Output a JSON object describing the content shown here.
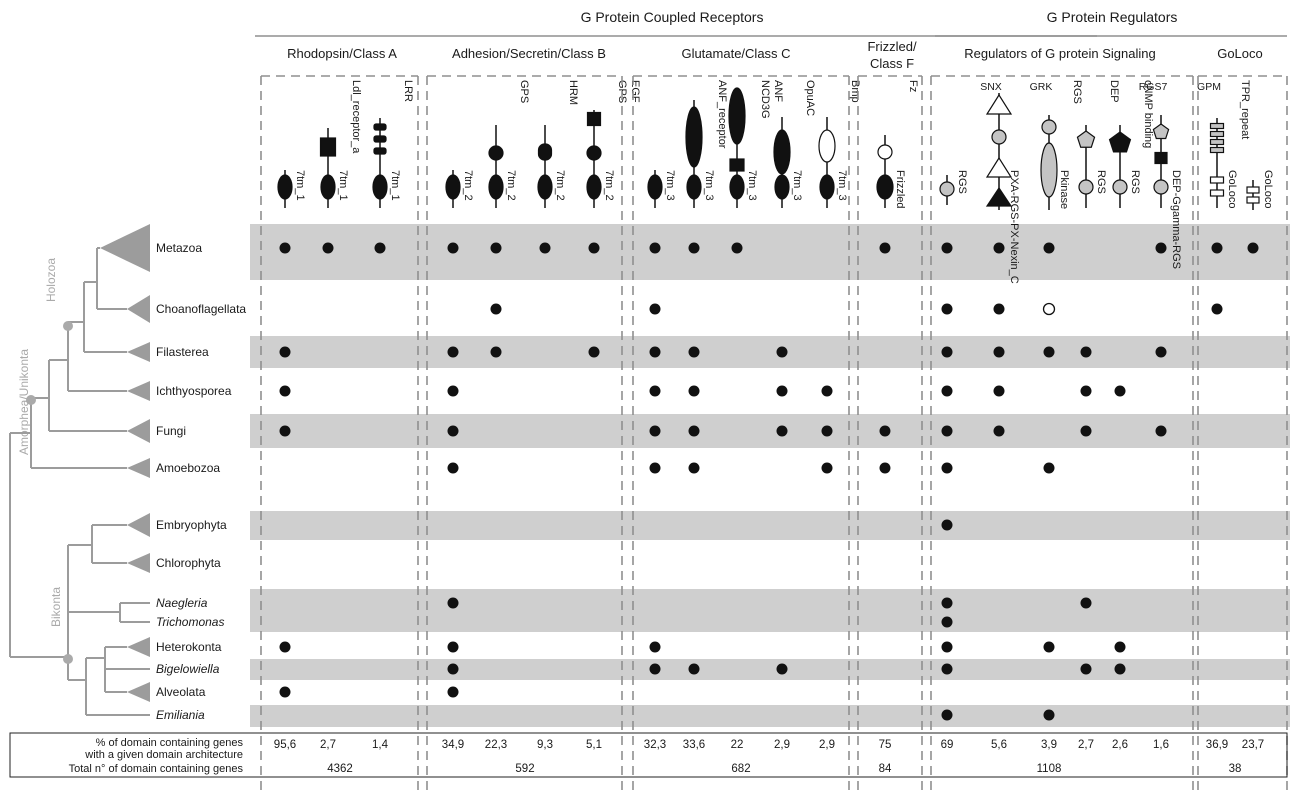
{
  "supergroups": [
    {
      "label": "G Protein Coupled Receptors"
    },
    {
      "label": "G Protein Regulators"
    }
  ],
  "classes": [
    {
      "label": "Rhodopsin/Class A"
    },
    {
      "label": "Adhesion/Secretin/Class B"
    },
    {
      "label": "Glutamate/Class C"
    },
    {
      "label": "Frizzled/",
      "label2": "Class F"
    },
    {
      "label": "Regulators of G protein Signaling"
    },
    {
      "label": "GoLoco"
    }
  ],
  "columns": [
    {
      "name": "col-7tm1-a",
      "labels": [
        "7tm_1"
      ],
      "pct": "95,6",
      "shape": "7tm"
    },
    {
      "name": "col-ldl",
      "labels": [
        "Ldl_receptor_a",
        "7tm_1"
      ],
      "pct": "2,7",
      "shape": "ldl"
    },
    {
      "name": "col-lrr",
      "labels": [
        "LRR",
        "7tm_1"
      ],
      "pct": "1,4",
      "shape": "lrr"
    },
    {
      "name": "col-7tm2-a",
      "labels": [
        "7tm_2"
      ],
      "pct": "34,9",
      "shape": "7tm"
    },
    {
      "name": "col-gps",
      "labels": [
        "GPS",
        "7tm_2"
      ],
      "pct": "22,3",
      "shape": "gps"
    },
    {
      "name": "col-hrm",
      "labels": [
        "HRM",
        "7tm_2"
      ],
      "pct": "9,3",
      "shape": "hrm"
    },
    {
      "name": "col-egf",
      "labels": [
        "EGF",
        "GPS",
        "7tm_2"
      ],
      "pct": "5,1",
      "shape": "egf"
    },
    {
      "name": "col-7tm3-a",
      "labels": [
        "7tm_3"
      ],
      "pct": "32,3",
      "shape": "7tm"
    },
    {
      "name": "col-anf",
      "labels": [
        "ANF_receptor",
        "7tm_3"
      ],
      "pct": "33,6",
      "shape": "anf"
    },
    {
      "name": "col-ncd3g",
      "labels": [
        "ANF",
        "NCD3G",
        "7tm_3"
      ],
      "pct": "22",
      "shape": "ncd3g"
    },
    {
      "name": "col-opuac",
      "labels": [
        "OpuAC",
        "7tm_3"
      ],
      "pct": "2,9",
      "shape": "opuac"
    },
    {
      "name": "col-bmp",
      "labels": [
        "Bmp",
        "7tm_3"
      ],
      "pct": "2,9",
      "shape": "bmp"
    },
    {
      "name": "col-frizzled",
      "labels": [
        "Fz",
        "Frizzled"
      ],
      "pct": "75",
      "shape": "fz"
    },
    {
      "name": "col-rgs-a",
      "labels": [
        "RGS"
      ],
      "pct": "69",
      "shape": "rgs"
    },
    {
      "name": "col-snx",
      "labels": [
        "PXA-RGS-PX-Nexin_C"
      ],
      "toplabel": "SNX",
      "pct": "5,6",
      "shape": "snx"
    },
    {
      "name": "col-grk",
      "labels": [
        "RGS",
        "Pkinase"
      ],
      "toplabel": "GRK",
      "pct": "3,9",
      "shape": "grk"
    },
    {
      "name": "col-dep",
      "labels": [
        "DEP",
        "RGS"
      ],
      "pct": "2,7",
      "shape": "dep"
    },
    {
      "name": "col-cnmp",
      "labels": [
        "cNMP binding",
        "RGS"
      ],
      "pct": "2,6",
      "shape": "cnmp"
    },
    {
      "name": "col-rgs7",
      "labels": [
        "DEP-Ggamma-RGS"
      ],
      "toplabel": "RGS7",
      "pct": "1,6",
      "shape": "rgs7"
    },
    {
      "name": "col-gpm",
      "labels": [
        "TPR_repeat",
        "GoLoco"
      ],
      "toplabel": "GPM",
      "pct": "36,9",
      "shape": "gpm"
    },
    {
      "name": "col-goloco",
      "labels": [
        "GoLoco"
      ],
      "pct": "23,7",
      "shape": "goloco"
    }
  ],
  "totals": [
    "4362",
    "592",
    "682",
    "84",
    "1108",
    "38"
  ],
  "footer": {
    "pct_line1": "% of domain containing genes",
    "pct_line2": "with a given domain architecture",
    "total_label": "Total n° of domain containing genes"
  },
  "taxa": [
    {
      "name": "Metazoa",
      "italic": false,
      "filled": [
        0,
        1,
        2,
        3,
        4,
        5,
        6,
        7,
        8,
        9,
        12,
        13,
        14,
        15,
        18,
        19,
        20
      ],
      "open": []
    },
    {
      "name": "Choanoflagellata",
      "italic": false,
      "filled": [
        4,
        7,
        13,
        14,
        19
      ],
      "open": [
        15
      ]
    },
    {
      "name": "Filasterea",
      "italic": false,
      "filled": [
        0,
        3,
        4,
        6,
        7,
        8,
        10,
        13,
        14,
        15,
        16,
        18
      ],
      "open": []
    },
    {
      "name": "Ichthyosporea",
      "italic": false,
      "filled": [
        0,
        3,
        7,
        8,
        10,
        11,
        13,
        14,
        16,
        17
      ],
      "open": []
    },
    {
      "name": "Fungi",
      "italic": false,
      "filled": [
        0,
        3,
        7,
        8,
        10,
        11,
        12,
        13,
        14,
        16,
        18
      ],
      "open": []
    },
    {
      "name": "Amoebozoa",
      "italic": false,
      "filled": [
        3,
        7,
        8,
        11,
        12,
        13,
        15
      ],
      "open": []
    },
    {
      "name": "Embryophyta",
      "italic": false,
      "filled": [
        13
      ],
      "open": []
    },
    {
      "name": "Chlorophyta",
      "italic": false,
      "filled": [],
      "open": []
    },
    {
      "name": "Naegleria",
      "italic": true,
      "filled": [
        3,
        13,
        16
      ],
      "open": []
    },
    {
      "name": "Trichomonas",
      "italic": true,
      "filled": [
        13
      ],
      "open": []
    },
    {
      "name": "Heterokonta",
      "italic": false,
      "filled": [
        0,
        3,
        7,
        13,
        15,
        17
      ],
      "open": []
    },
    {
      "name": "Bigelowiella",
      "italic": true,
      "filled": [
        3,
        7,
        8,
        10,
        13,
        16,
        17
      ],
      "open": []
    },
    {
      "name": "Alveolata",
      "italic": false,
      "filled": [
        0,
        3
      ],
      "open": []
    },
    {
      "name": "Emiliania",
      "italic": true,
      "filled": [
        13,
        15
      ],
      "open": []
    }
  ],
  "clades": [
    {
      "label": "Holozoa"
    },
    {
      "label": "Amorphea/Unikonta"
    },
    {
      "label": "Bikonta"
    }
  ],
  "colors": {
    "band": "#cfcfcf",
    "tree": "#9c9c9c",
    "dot": "#111111",
    "dash": "#8f8f8f",
    "grey_domain": "#c4c4c4"
  }
}
